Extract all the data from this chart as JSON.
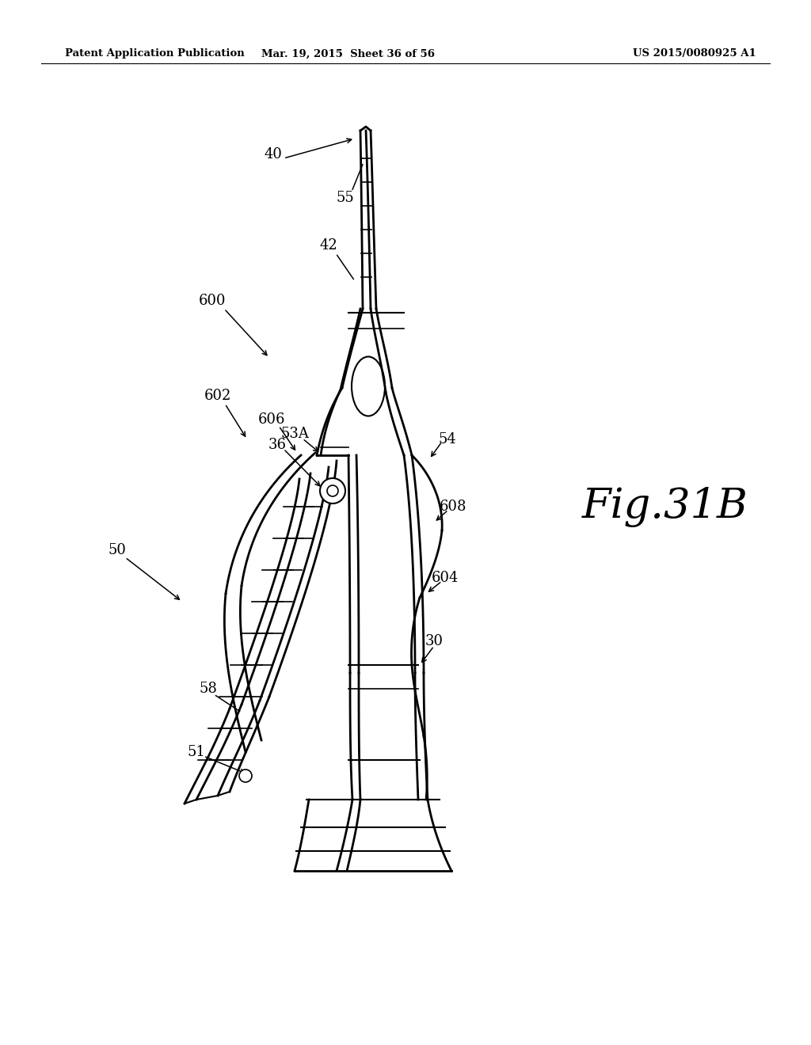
{
  "bg_color": "#ffffff",
  "line_color": "#000000",
  "fig_width": 10.24,
  "fig_height": 13.2,
  "header_left": "Patent Application Publication",
  "header_center": "Mar. 19, 2015  Sheet 36 of 56",
  "header_right": "US 2015/0080925 A1",
  "fig_label": "Fig.31B"
}
